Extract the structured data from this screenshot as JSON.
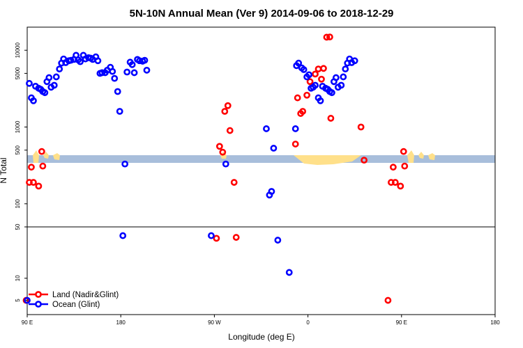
{
  "chart_data": {
    "type": "scatter",
    "title": "5N-10N Annual Mean (Ver 9)   2014-09-06 to 2018-12-29",
    "xlabel": "Longitude (deg E)",
    "ylabel": "N Total",
    "x_scale": "longitude, 90 E to 180 E wrapping through 360 degrees",
    "y_scale": "log, broken at 50",
    "x_ticks": [
      {
        "pos": 90,
        "label": "90 E"
      },
      {
        "pos": 180,
        "label": "180"
      },
      {
        "pos": 270,
        "label": "90 W"
      },
      {
        "pos": 360,
        "label": "0"
      },
      {
        "pos": 450,
        "label": "90 E"
      },
      {
        "pos": 540,
        "label": "180"
      }
    ],
    "y_ticks": [
      {
        "value": 5,
        "label": "5"
      },
      {
        "value": 10,
        "label": "10"
      },
      {
        "value": 50,
        "label": "50"
      },
      {
        "value": 100,
        "label": "100"
      },
      {
        "value": 500,
        "label": "500"
      },
      {
        "value": 1000,
        "label": "1000"
      },
      {
        "value": 5000,
        "label": "5000"
      },
      {
        "value": 10000,
        "label": "10000"
      }
    ],
    "series": [
      {
        "name": "Land (Nadir&Glint)",
        "color": "#ff0000",
        "points": [
          [
            89,
            5
          ],
          [
            92,
            190
          ],
          [
            94,
            300
          ],
          [
            96,
            190
          ],
          [
            101,
            170
          ],
          [
            104,
            480
          ],
          [
            105,
            310
          ],
          [
            272,
            35
          ],
          [
            275,
            560
          ],
          [
            278,
            470
          ],
          [
            280,
            1600
          ],
          [
            283,
            1900
          ],
          [
            285,
            900
          ],
          [
            289,
            190
          ],
          [
            291,
            36
          ],
          [
            348,
            600
          ],
          [
            350,
            2400
          ],
          [
            353,
            1500
          ],
          [
            355,
            1600
          ],
          [
            359,
            2600
          ],
          [
            362,
            3900
          ],
          [
            367,
            4900
          ],
          [
            370,
            5700
          ],
          [
            373,
            4200
          ],
          [
            375,
            5800
          ],
          [
            378,
            14800
          ],
          [
            381,
            14900
          ],
          [
            382,
            1300
          ],
          [
            411,
            1000
          ],
          [
            414,
            370
          ],
          [
            437,
            5
          ],
          [
            440,
            190
          ],
          [
            442,
            300
          ],
          [
            444,
            190
          ],
          [
            449,
            170
          ],
          [
            452,
            480
          ],
          [
            453,
            310
          ]
        ]
      },
      {
        "name": "Ocean (Glint)",
        "color": "#0000ff",
        "points": [
          [
            90,
            5
          ],
          [
            92,
            3700
          ],
          [
            94,
            2400
          ],
          [
            96,
            2200
          ],
          [
            98,
            3400
          ],
          [
            101,
            3200
          ],
          [
            103,
            3100
          ],
          [
            105,
            2900
          ],
          [
            107,
            2800
          ],
          [
            109,
            3900
          ],
          [
            111,
            4400
          ],
          [
            113,
            3300
          ],
          [
            116,
            3500
          ],
          [
            118,
            4500
          ],
          [
            121,
            5700
          ],
          [
            123,
            6800
          ],
          [
            125,
            7700
          ],
          [
            127,
            6900
          ],
          [
            130,
            7300
          ],
          [
            132,
            7400
          ],
          [
            135,
            7600
          ],
          [
            137,
            8600
          ],
          [
            139,
            7500
          ],
          [
            141,
            7100
          ],
          [
            144,
            8600
          ],
          [
            146,
            7700
          ],
          [
            149,
            8000
          ],
          [
            151,
            7900
          ],
          [
            153,
            7600
          ],
          [
            156,
            8200
          ],
          [
            158,
            7300
          ],
          [
            160,
            5000
          ],
          [
            162,
            5100
          ],
          [
            165,
            5100
          ],
          [
            167,
            5500
          ],
          [
            170,
            6000
          ],
          [
            172,
            5300
          ],
          [
            174,
            4300
          ],
          [
            177,
            2900
          ],
          [
            179,
            1600
          ],
          [
            182,
            38
          ],
          [
            184,
            330
          ],
          [
            186,
            5200
          ],
          [
            189,
            7000
          ],
          [
            191,
            6500
          ],
          [
            193,
            5100
          ],
          [
            196,
            7600
          ],
          [
            198,
            7300
          ],
          [
            201,
            7200
          ],
          [
            203,
            7400
          ],
          [
            205,
            5500
          ],
          [
            267,
            38
          ],
          [
            281,
            330
          ],
          [
            320,
            950
          ],
          [
            323,
            130
          ],
          [
            325,
            145
          ],
          [
            327,
            530
          ],
          [
            331,
            33
          ],
          [
            342,
            12
          ],
          [
            348,
            950
          ],
          [
            349,
            6300
          ],
          [
            351,
            6800
          ],
          [
            354,
            5900
          ],
          [
            356,
            5600
          ],
          [
            359,
            4500
          ],
          [
            361,
            4800
          ],
          [
            363,
            3200
          ],
          [
            365,
            3300
          ],
          [
            367,
            3500
          ],
          [
            370,
            2400
          ],
          [
            372,
            2200
          ],
          [
            374,
            3400
          ],
          [
            377,
            3200
          ],
          [
            379,
            3100
          ],
          [
            381,
            2900
          ],
          [
            383,
            2800
          ],
          [
            385,
            3900
          ],
          [
            387,
            4400
          ],
          [
            389,
            3300
          ],
          [
            392,
            3500
          ],
          [
            394,
            4500
          ],
          [
            396,
            5700
          ],
          [
            398,
            6800
          ],
          [
            400,
            7700
          ],
          [
            402,
            6900
          ],
          [
            405,
            7300
          ]
        ]
      }
    ],
    "legend_position": "bottom-left"
  }
}
